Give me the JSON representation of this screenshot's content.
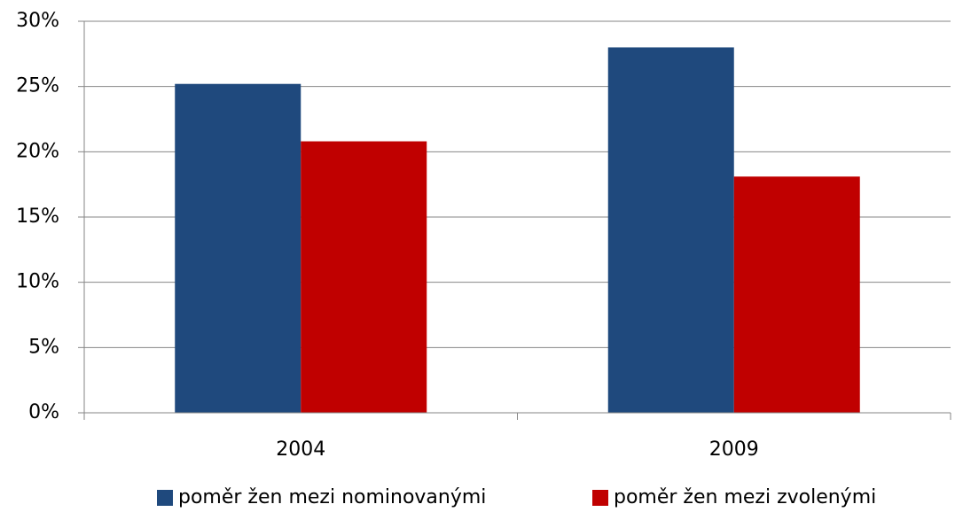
{
  "chart_data": {
    "type": "bar",
    "categories": [
      "2004",
      "2009"
    ],
    "series": [
      {
        "name": "poměr žen mezi nominovanými",
        "color": "#1f497d",
        "values": [
          25.2,
          28.0
        ]
      },
      {
        "name": "poměr žen mezi zvolenými",
        "color": "#c00000",
        "values": [
          20.8,
          18.1
        ]
      }
    ],
    "ylim": [
      0,
      30
    ],
    "yticks": [
      {
        "value": 0,
        "label": "0%"
      },
      {
        "value": 5,
        "label": "5%"
      },
      {
        "value": 10,
        "label": "10%"
      },
      {
        "value": 15,
        "label": "15%"
      },
      {
        "value": 20,
        "label": "20%"
      },
      {
        "value": 25,
        "label": "25%"
      },
      {
        "value": 30,
        "label": "30%"
      }
    ],
    "grid": true,
    "legend": "bottom"
  }
}
